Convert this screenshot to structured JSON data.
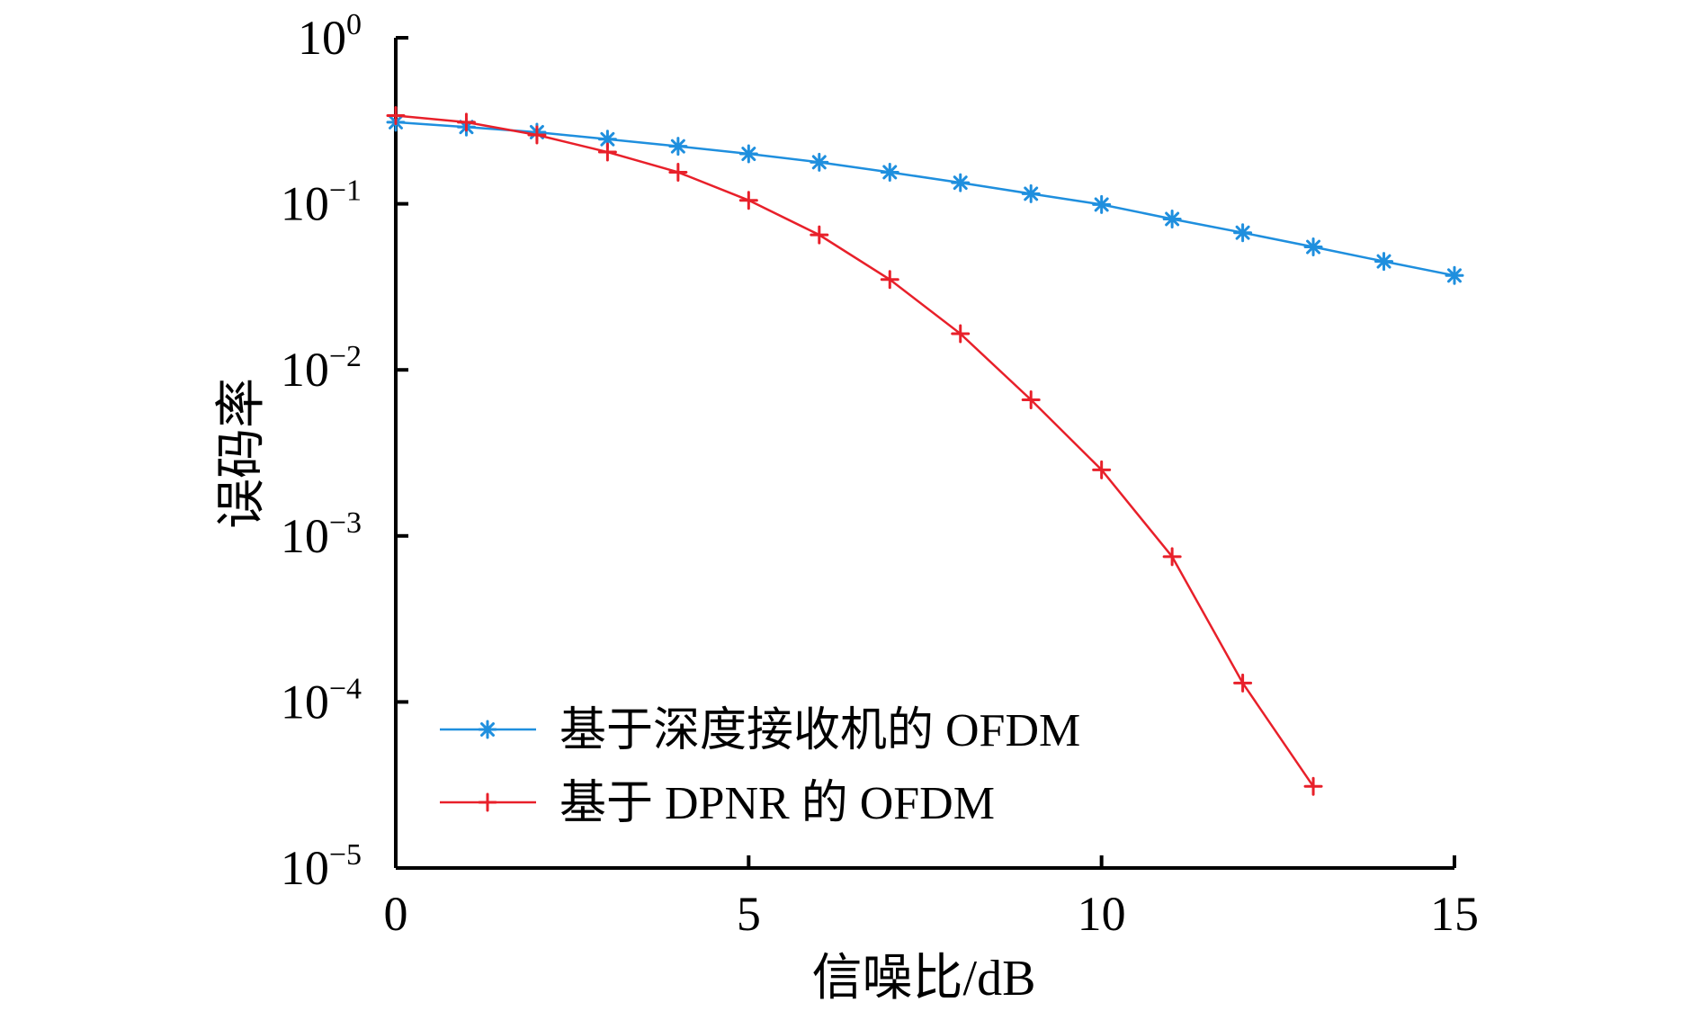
{
  "chart_data": {
    "type": "line",
    "title": "",
    "xlabel": "信噪比/dB",
    "ylabel": "误码率",
    "xlim": [
      0,
      15
    ],
    "ylim": [
      1e-05,
      1
    ],
    "yscale": "log",
    "grid": false,
    "legend_position": "lower-left",
    "x_ticks": [
      {
        "value": 0,
        "label": "0"
      },
      {
        "value": 5,
        "label": "5"
      },
      {
        "value": 10,
        "label": "10"
      },
      {
        "value": 15,
        "label": "15"
      }
    ],
    "y_ticks": [
      {
        "value": 1,
        "base": "10",
        "exp": "0"
      },
      {
        "value": 0.1,
        "base": "10",
        "exp": "−1"
      },
      {
        "value": 0.01,
        "base": "10",
        "exp": "−2"
      },
      {
        "value": 0.001,
        "base": "10",
        "exp": "−3"
      },
      {
        "value": 0.0001,
        "base": "10",
        "exp": "−4"
      },
      {
        "value": 1e-05,
        "base": "10",
        "exp": "−5"
      }
    ],
    "series": [
      {
        "name": "基于深度接收机的 OFDM",
        "color": "#1f8fde",
        "marker": "asterisk",
        "x": [
          0,
          1,
          2,
          3,
          4,
          5,
          6,
          7,
          8,
          9,
          10,
          11,
          12,
          13,
          14,
          15
        ],
        "y": [
          0.31,
          0.29,
          0.27,
          0.245,
          0.222,
          0.2,
          0.178,
          0.155,
          0.134,
          0.115,
          0.099,
          0.081,
          0.067,
          0.055,
          0.045,
          0.037
        ]
      },
      {
        "name": "基于 DPNR 的 OFDM",
        "color": "#e8202a",
        "marker": "plus",
        "x": [
          0,
          1,
          2,
          3,
          4,
          5,
          6,
          7,
          8,
          9,
          10,
          11,
          12,
          13
        ],
        "y": [
          0.34,
          0.31,
          0.26,
          0.205,
          0.155,
          0.105,
          0.065,
          0.035,
          0.0165,
          0.0066,
          0.0025,
          0.00075,
          0.00013,
          3.1e-05
        ]
      }
    ]
  }
}
